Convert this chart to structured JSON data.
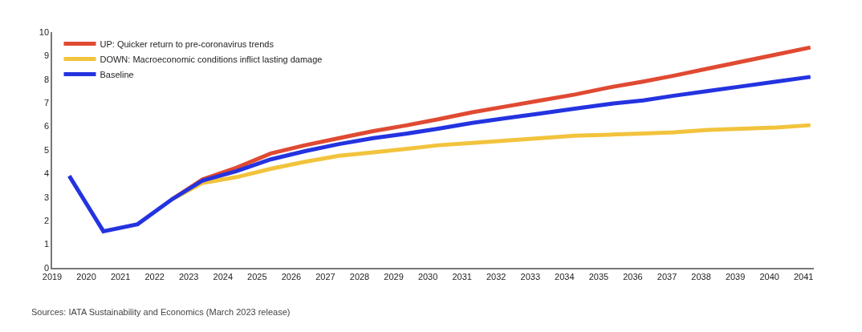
{
  "chart_data": {
    "type": "line",
    "x": [
      2019.5,
      2020.5,
      2021.5,
      2022.5,
      2023.4,
      2024.4,
      2025.4,
      2026.4,
      2027.4,
      2028.4,
      2029.4,
      2030.3,
      2031.3,
      2032.3,
      2033.3,
      2034.3,
      2035.3,
      2036.3,
      2037.2,
      2038.2,
      2039.2,
      2040.2,
      2041.2
    ],
    "series": [
      {
        "name": "UP: Quicker return to pre-coronavirus trends",
        "color": "#e04a32",
        "values": [
          null,
          null,
          null,
          2.9,
          3.75,
          4.25,
          4.85,
          5.2,
          5.5,
          5.8,
          6.05,
          6.3,
          6.6,
          6.85,
          7.1,
          7.35,
          7.65,
          7.9,
          8.15,
          8.45,
          8.75,
          9.05,
          9.35
        ]
      },
      {
        "name": "DOWN: Macroeconomic conditions inflict lasting damage",
        "color": "#f2c33c",
        "values": [
          null,
          null,
          null,
          2.9,
          3.6,
          3.85,
          4.2,
          4.5,
          4.75,
          4.9,
          5.05,
          5.2,
          5.3,
          5.4,
          5.5,
          5.6,
          5.65,
          5.7,
          5.75,
          5.85,
          5.9,
          5.95,
          6.05
        ]
      },
      {
        "name": "Baseline",
        "color": "#2433e0",
        "values": [
          3.9,
          1.55,
          1.85,
          2.9,
          3.7,
          4.1,
          4.6,
          4.95,
          5.25,
          5.5,
          5.7,
          5.9,
          6.15,
          6.35,
          6.55,
          6.75,
          6.95,
          7.1,
          7.3,
          7.5,
          7.7,
          7.9,
          8.1
        ]
      }
    ],
    "xlim": [
      2019,
      2041.3
    ],
    "xticks": [
      2019,
      2020,
      2021,
      2022,
      2023,
      2024,
      2025,
      2026,
      2027,
      2028,
      2029,
      2030,
      2031,
      2032,
      2033,
      2034,
      2035,
      2036,
      2037,
      2038,
      2039,
      2040,
      2041
    ],
    "ylim": [
      0,
      10
    ],
    "yticks": [
      0,
      1,
      2,
      3,
      4,
      5,
      6,
      7,
      8,
      9,
      10
    ],
    "legend": "top left",
    "marker": "none",
    "line_style": "solid",
    "annotations": [
      "Sources: IATA Sustainability and Economics (March 2023 release)"
    ]
  }
}
